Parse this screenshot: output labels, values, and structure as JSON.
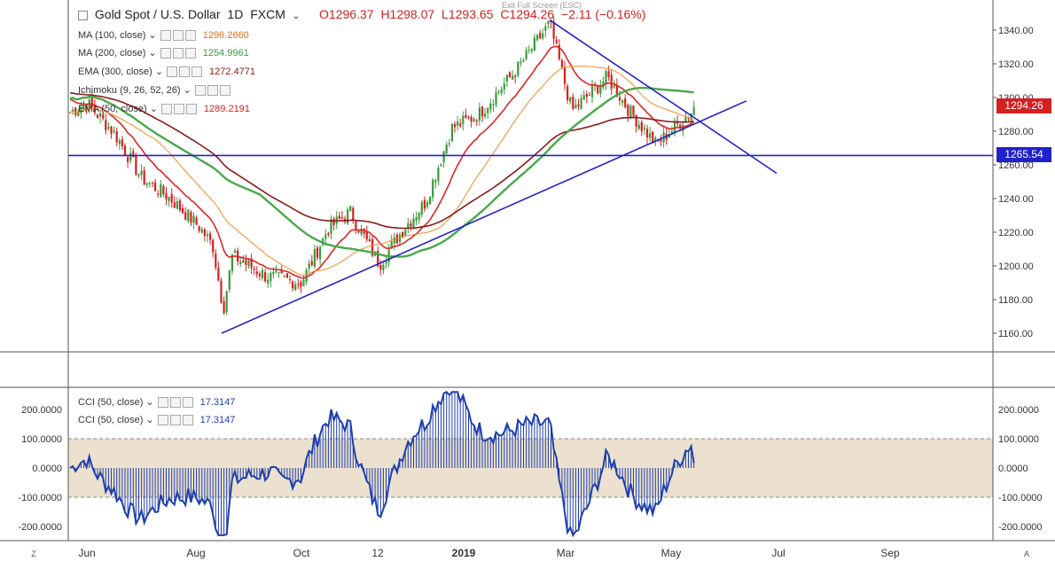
{
  "header": {
    "symbol": "Gold Spot / U.S. Dollar",
    "interval": "1D",
    "exchange": "FXCM",
    "open": "O1296.37",
    "high": "H1298.07",
    "low": "L1293.65",
    "close": "C1294.26",
    "change": "−2.11 (−0.16%)",
    "exit_fullscreen": "Exit Full Screen (ESC)"
  },
  "indicators": [
    {
      "label": "MA (100, close)",
      "value": "1296.2660",
      "color": "#e07020"
    },
    {
      "label": "MA (200, close)",
      "value": "1254.9961",
      "color": "#3a9a3a"
    },
    {
      "label": "EMA (300, close)",
      "value": "1272.4771",
      "color": "#8b1a1a"
    },
    {
      "label": "Ichimoku (9, 26, 52, 26)",
      "value": "",
      "color": "#2b6fd6"
    },
    {
      "label": "EMA (50, close)",
      "value": "1289.2191",
      "color": "#d42020"
    }
  ],
  "cci": [
    {
      "label": "CCI (50, close)",
      "value": "17.3147"
    },
    {
      "label": "CCI (50, close)",
      "value": "17.3147"
    }
  ],
  "price_labels": {
    "last": "1294.26",
    "hline": "1265.54"
  },
  "colors": {
    "up": "#3a9a3a",
    "down": "#d42020",
    "trend": "#2222cc",
    "cci": "#1f3fae",
    "cci_band": "#ece1cf",
    "ma100": "#f28c28",
    "ma200": "#49a84a",
    "ema300": "#8b1a1a",
    "ema50": "#e02525"
  },
  "time_axis": [
    "Jun",
    "Aug",
    "Oct",
    "12",
    "2019",
    "Mar",
    "May",
    "Jul",
    "Sep"
  ],
  "corner_labels": {
    "left": "Z",
    "right": "A"
  },
  "chart_data": {
    "type": "candlestick",
    "title": "Gold Spot / U.S. Dollar",
    "price_axis": {
      "ticks": [
        1160,
        1180,
        1200,
        1220,
        1240,
        1260,
        1280,
        1300,
        1320,
        1340
      ],
      "range": [
        1151,
        1352
      ]
    },
    "candles_close_approx": [
      [
        "2018-05-21",
        1291
      ],
      [
        "2018-06-01",
        1297
      ],
      [
        "2018-06-15",
        1278
      ],
      [
        "2018-06-29",
        1252
      ],
      [
        "2018-07-13",
        1241
      ],
      [
        "2018-07-27",
        1223
      ],
      [
        "2018-08-10",
        1212
      ],
      [
        "2018-08-16",
        1174
      ],
      [
        "2018-08-24",
        1206
      ],
      [
        "2018-09-14",
        1194
      ],
      [
        "2018-09-28",
        1190
      ],
      [
        "2018-10-12",
        1222
      ],
      [
        "2018-10-26",
        1232
      ],
      [
        "2018-11-13",
        1201
      ],
      [
        "2018-11-30",
        1222
      ],
      [
        "2018-12-14",
        1238
      ],
      [
        "2018-12-31",
        1282
      ],
      [
        "2019-01-14",
        1290
      ],
      [
        "2019-02-01",
        1318
      ],
      [
        "2019-02-20",
        1344
      ],
      [
        "2019-03-01",
        1292
      ],
      [
        "2019-03-20",
        1312
      ],
      [
        "2019-04-05",
        1292
      ],
      [
        "2019-04-23",
        1272
      ],
      [
        "2019-05-08",
        1294
      ]
    ],
    "cci_axis": {
      "ticks": [
        -200,
        -100,
        0,
        100,
        200
      ],
      "band": [
        -100,
        100
      ]
    },
    "cci_last": 17.3147,
    "horizontal_line": 1265.54
  }
}
